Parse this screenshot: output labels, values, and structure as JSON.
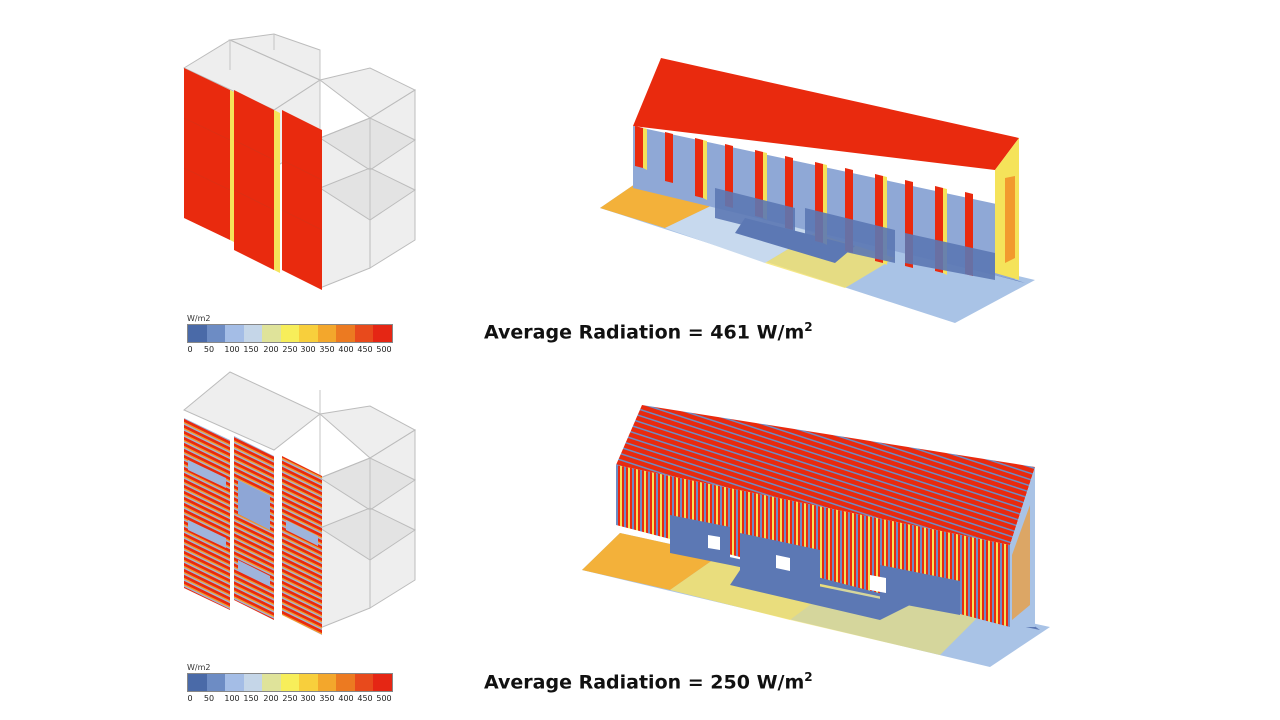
{
  "scenarios": [
    {
      "legend": {
        "unit": "W/m2",
        "ticks": [
          "0",
          "50",
          "100",
          "150",
          "200",
          "250",
          "300",
          "350",
          "400",
          "450",
          "500"
        ],
        "colors": [
          "#4a6aa8",
          "#6d8cc4",
          "#a4bde6",
          "#c5d6e8",
          "#dfe39a",
          "#f7ee5a",
          "#f8cf3c",
          "#f3a72c",
          "#ec7a21",
          "#e84a1c",
          "#e52614"
        ]
      },
      "average": {
        "label": "Average Radiation  = 461 W/m",
        "superscript": "2",
        "value": 461,
        "unit": "W/m2"
      }
    },
    {
      "legend": {
        "unit": "W/m2",
        "ticks": [
          "0",
          "50",
          "100",
          "150",
          "200",
          "250",
          "300",
          "350",
          "400",
          "450",
          "500"
        ],
        "colors": [
          "#4a6aa8",
          "#6d8cc4",
          "#a4bde6",
          "#c5d6e8",
          "#dfe39a",
          "#f7ee5a",
          "#f8cf3c",
          "#f3a72c",
          "#ec7a21",
          "#e84a1c",
          "#e52614"
        ]
      },
      "average": {
        "label": "Average Radiation = 250 W/m",
        "superscript": "2",
        "value": 250,
        "unit": "W/m2"
      }
    }
  ],
  "colors": {
    "red": "#e92a0e",
    "blue": "#5c78b4",
    "yellow": "#f5e35a",
    "orange": "#f29a2e",
    "gray": "#d6d6d6"
  }
}
